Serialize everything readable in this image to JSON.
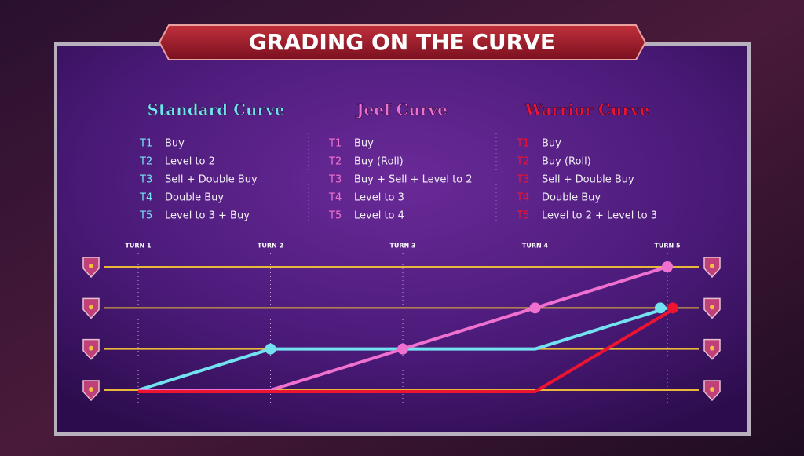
{
  "title": "GRADING ON THE CURVE",
  "plans": [
    {
      "steps": [
        [
          "T1",
          "Buy"
        ],
        [
          "T2",
          "Level to 2"
        ],
        [
          "T3",
          "Sell + Double Buy"
        ],
        [
          "T4",
          "Double Buy"
        ],
        [
          "T5",
          "Level to 3 + Buy"
        ]
      ]
    },
    {
      "steps": [
        [
          "T1",
          "Buy"
        ],
        [
          "T2",
          "Buy (Roll)"
        ],
        [
          "T3",
          "Buy + Sell + Level to 2"
        ],
        [
          "T4",
          "Level to 3"
        ],
        [
          "T5",
          "Level to 4"
        ]
      ]
    },
    {
      "steps": [
        [
          "T1",
          "Buy"
        ],
        [
          "T2",
          "Buy (Roll)"
        ],
        [
          "T3",
          "Sell + Double Buy"
        ],
        [
          "T4",
          "Double Buy"
        ],
        [
          "T5",
          "Level to 2 + Level to 3"
        ]
      ]
    }
  ],
  "chart_data": {
    "type": "line",
    "categories": [
      "TURN 1",
      "TURN 2",
      "TURN 3",
      "TURN 4",
      "TURN 5"
    ],
    "series": [
      {
        "name": "Standard Curve",
        "color": "#72e2f0",
        "values": [
          1,
          2,
          2,
          2,
          3
        ]
      },
      {
        "name": "Jeef Curve",
        "color": "#f070d0",
        "values": [
          1,
          1,
          2,
          3,
          4
        ]
      },
      {
        "name": "Warrior Curve",
        "color": "#ec1430",
        "values": [
          1,
          1,
          1,
          1,
          3
        ]
      }
    ],
    "ylim": [
      1,
      4
    ],
    "yticks": [
      1,
      2,
      3,
      4
    ],
    "grid": true,
    "grid_color": "#e8b83a"
  }
}
